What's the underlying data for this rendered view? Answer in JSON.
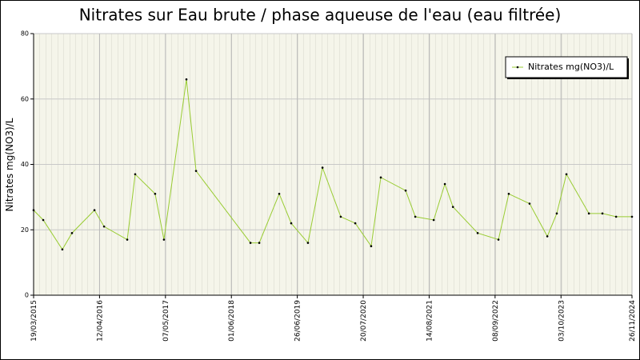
{
  "chart_data": {
    "type": "line",
    "title": "Nitrates sur Eau brute / phase aqueuse de l'eau (eau filtrée)",
    "y_label": "Nitrates mg(NO3)/L",
    "x": [
      "2015-03-19",
      "2015-05-15",
      "2015-09-05",
      "2015-11-01",
      "2016-03-13",
      "2016-05-09",
      "2016-09-23",
      "2016-11-09",
      "2017-03-07",
      "2017-04-28",
      "2017-09-08",
      "2017-11-04",
      "2018-09-22",
      "2018-11-13",
      "2019-03-11",
      "2019-05-21",
      "2019-08-28",
      "2019-11-22",
      "2020-03-09",
      "2020-06-03",
      "2020-09-05",
      "2020-11-01",
      "2021-03-28",
      "2021-05-24",
      "2021-09-10",
      "2021-11-15",
      "2022-01-02",
      "2022-05-28",
      "2022-09-28",
      "2022-11-28",
      "2023-03-31",
      "2023-07-14",
      "2023-09-08",
      "2023-11-04",
      "2024-03-16",
      "2024-06-04",
      "2024-08-24",
      "2024-11-26"
    ],
    "series": [
      {
        "name": "Nitrates mg(NO3)/L",
        "color": "#99cc33",
        "values": [
          26,
          23,
          14,
          19,
          26,
          21,
          17,
          37,
          31,
          17,
          66,
          38,
          16,
          16,
          31,
          22,
          16,
          39,
          24,
          22,
          15,
          36,
          32,
          24,
          23,
          34,
          27,
          19,
          17,
          31,
          28,
          18,
          25,
          37,
          25,
          25,
          24,
          24
        ]
      }
    ],
    "xlim": [
      "2015-03-19",
      "2024-11-26"
    ],
    "xticks": [
      {
        "value": "2015-03-19",
        "label": "19/03/2015"
      },
      {
        "value": "2016-04-12",
        "label": "12/04/2016"
      },
      {
        "value": "2017-05-07",
        "label": "07/05/2017"
      },
      {
        "value": "2018-06-01",
        "label": "01/06/2018"
      },
      {
        "value": "2019-06-26",
        "label": "26/06/2019"
      },
      {
        "value": "2020-07-20",
        "label": "20/07/2020"
      },
      {
        "value": "2021-08-14",
        "label": "14/08/2021"
      },
      {
        "value": "2022-09-08",
        "label": "08/09/2022"
      },
      {
        "value": "2023-10-03",
        "label": "03/10/2023"
      },
      {
        "value": "2024-11-26",
        "label": "26/11/2024"
      }
    ],
    "ylim": [
      0,
      80
    ],
    "yticks": [
      0,
      20,
      40,
      60,
      80
    ],
    "grid": true,
    "legend": "top-right"
  }
}
